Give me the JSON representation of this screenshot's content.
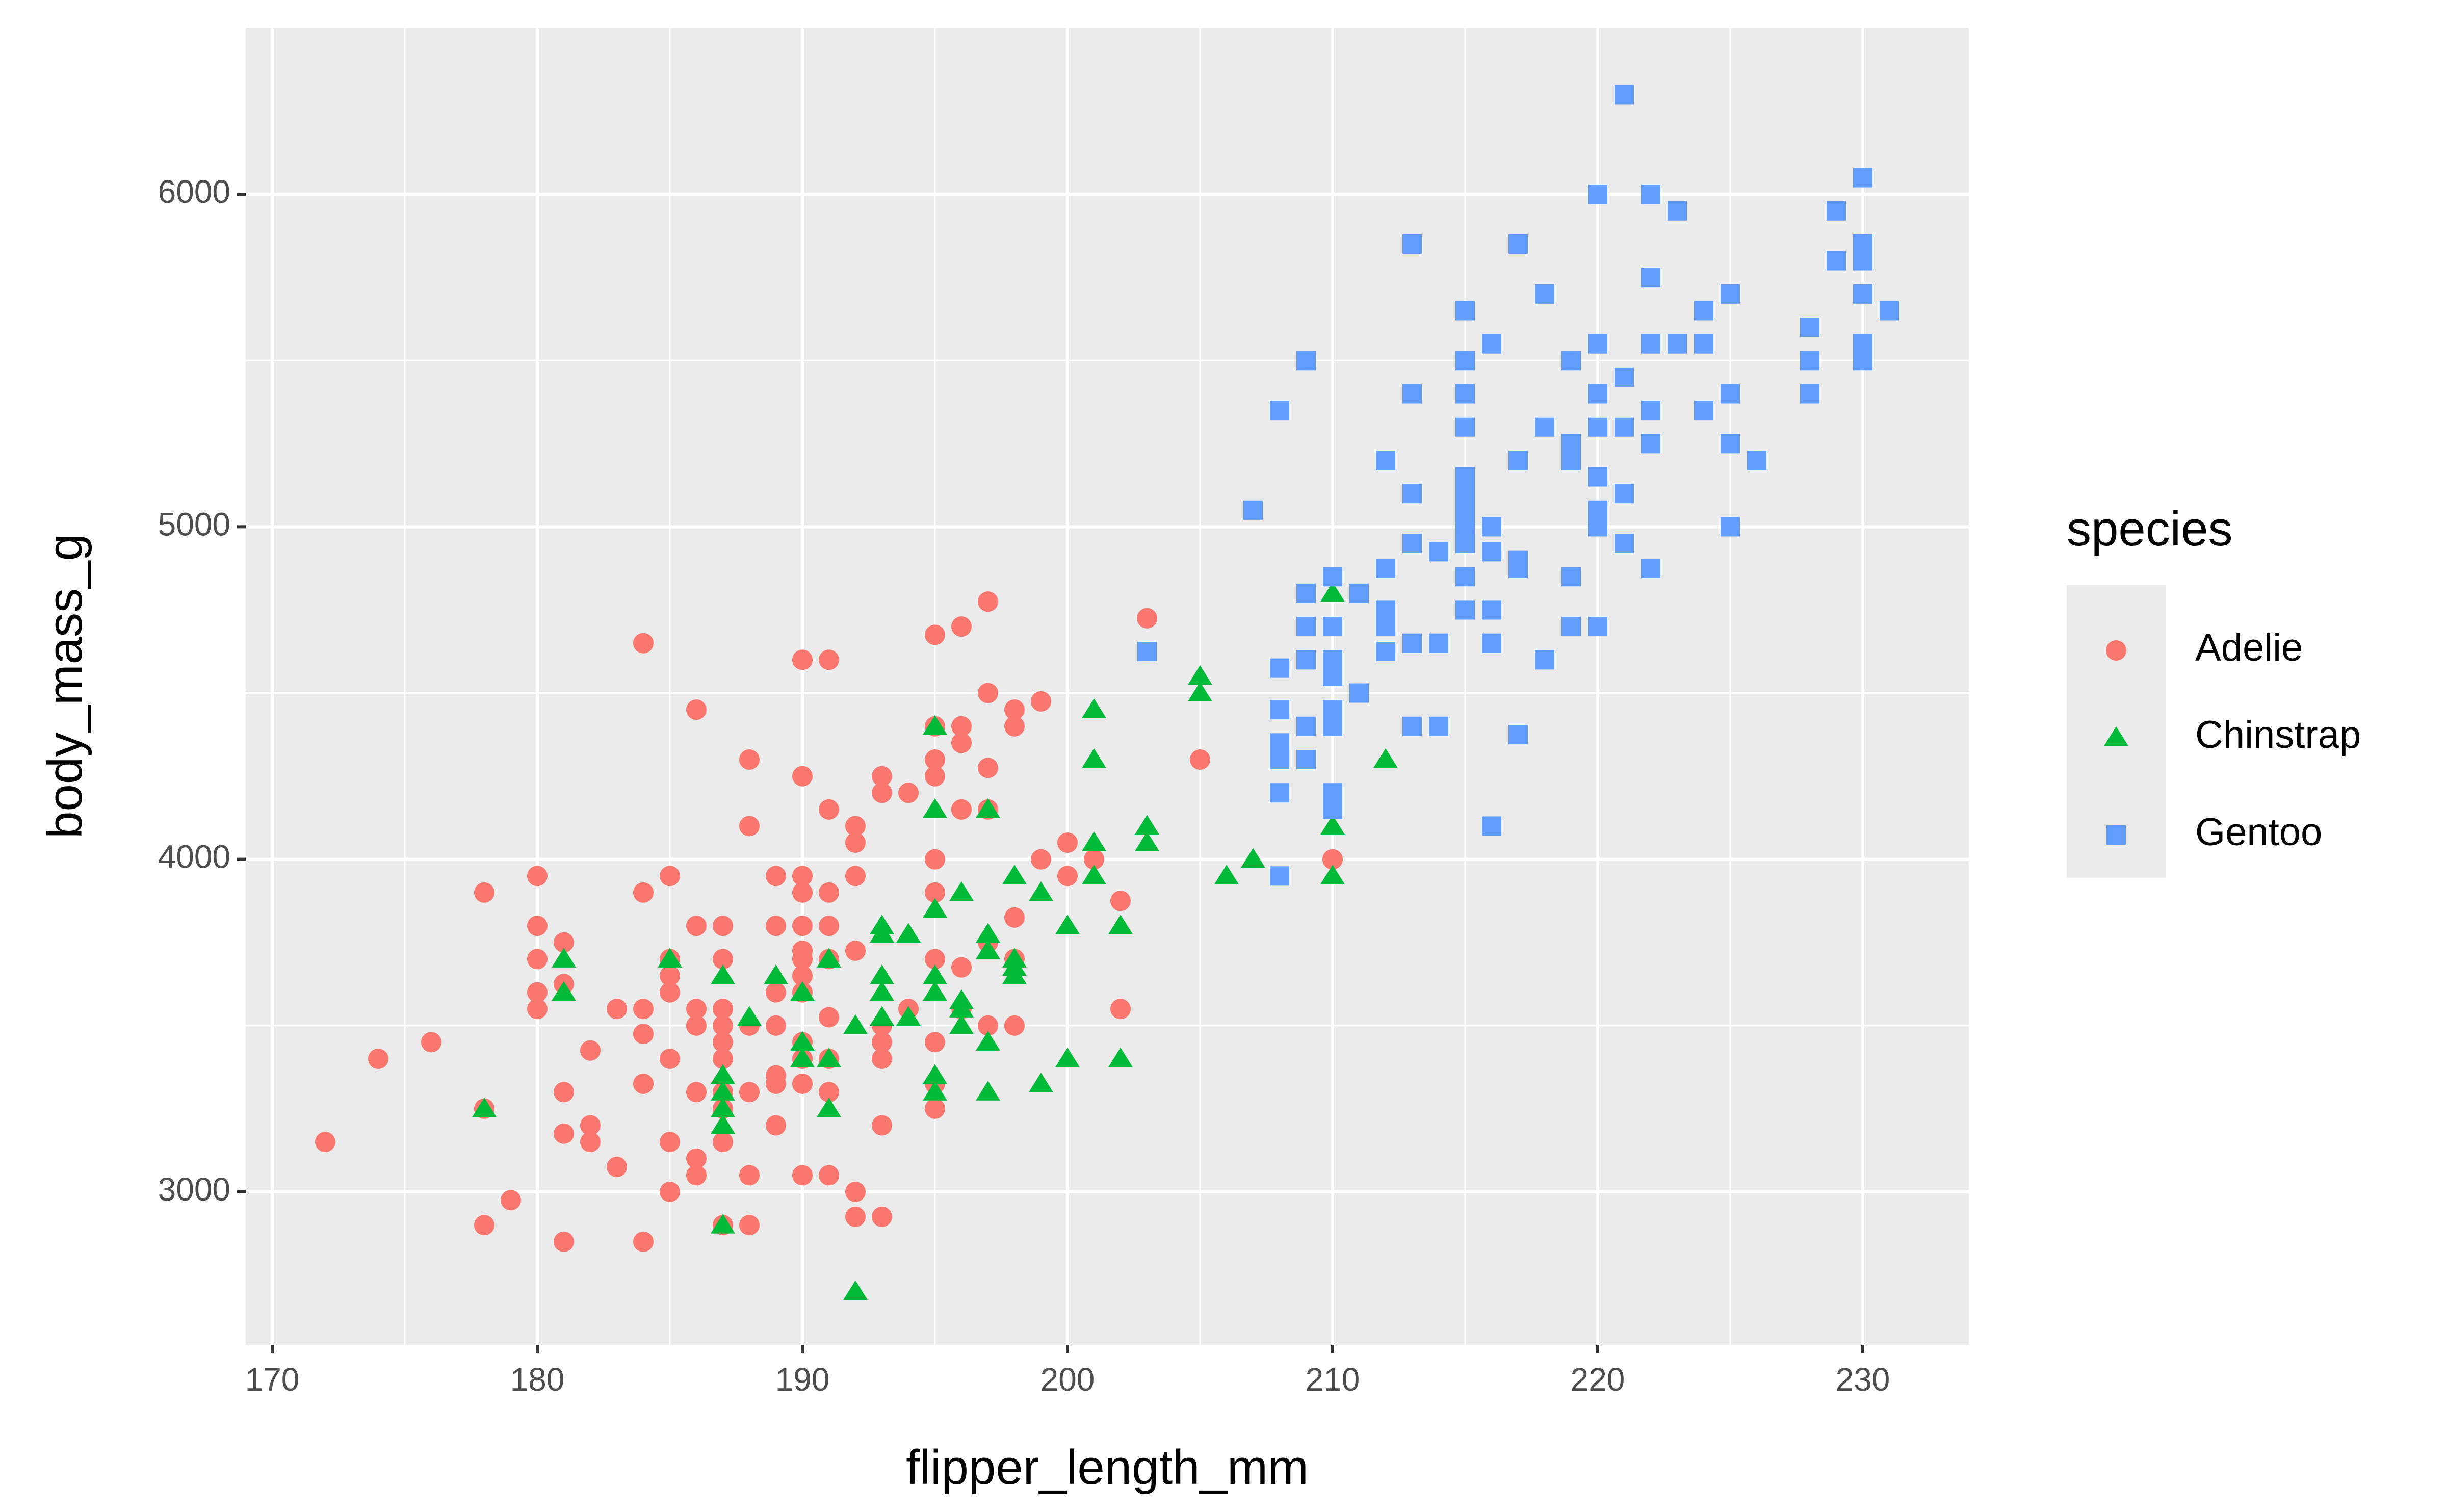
{
  "chart_data": {
    "type": "scatter",
    "title": "",
    "xlabel": "flipper_length_mm",
    "ylabel": "body_mass_g",
    "xlim": [
      169,
      234
    ],
    "ylim": [
      2540,
      6500
    ],
    "x_ticks": [
      170,
      180,
      190,
      200,
      210,
      220,
      230
    ],
    "y_ticks": [
      3000,
      4000,
      5000,
      6000
    ],
    "x_tick_labels": [
      "170",
      "180",
      "190",
      "200",
      "210",
      "220",
      "230"
    ],
    "y_tick_labels": [
      "3000",
      "4000",
      "5000",
      "6000"
    ],
    "grid": true,
    "legend": {
      "title": "species",
      "position": "right"
    },
    "series": [
      {
        "name": "Adelie",
        "color": "#F8766D",
        "shape": "circle",
        "points": [
          [
            172,
            3150
          ],
          [
            174,
            3400
          ],
          [
            176,
            3450
          ],
          [
            178,
            3900
          ],
          [
            178,
            2900
          ],
          [
            178,
            3250
          ],
          [
            179,
            2975
          ],
          [
            180,
            3950
          ],
          [
            180,
            3800
          ],
          [
            180,
            3700
          ],
          [
            180,
            3600
          ],
          [
            180,
            3550
          ],
          [
            181,
            3300
          ],
          [
            181,
            3175
          ],
          [
            181,
            2850
          ],
          [
            181,
            3750
          ],
          [
            181,
            3625
          ],
          [
            182,
            3425
          ],
          [
            182,
            3200
          ],
          [
            182,
            3150
          ],
          [
            183,
            3550
          ],
          [
            183,
            3075
          ],
          [
            184,
            4650
          ],
          [
            184,
            3900
          ],
          [
            184,
            3550
          ],
          [
            184,
            3475
          ],
          [
            184,
            3325
          ],
          [
            184,
            2850
          ],
          [
            185,
            3950
          ],
          [
            185,
            3700
          ],
          [
            185,
            3650
          ],
          [
            185,
            3600
          ],
          [
            185,
            3400
          ],
          [
            185,
            3150
          ],
          [
            185,
            3000
          ],
          [
            186,
            4450
          ],
          [
            186,
            3800
          ],
          [
            186,
            3550
          ],
          [
            186,
            3500
          ],
          [
            186,
            3300
          ],
          [
            186,
            3100
          ],
          [
            186,
            3050
          ],
          [
            187,
            3800
          ],
          [
            187,
            3700
          ],
          [
            187,
            3550
          ],
          [
            187,
            3500
          ],
          [
            187,
            3450
          ],
          [
            187,
            3400
          ],
          [
            187,
            3300
          ],
          [
            187,
            3250
          ],
          [
            187,
            3150
          ],
          [
            187,
            2900
          ],
          [
            188,
            4300
          ],
          [
            188,
            4100
          ],
          [
            188,
            3500
          ],
          [
            188,
            3300
          ],
          [
            188,
            3050
          ],
          [
            188,
            2900
          ],
          [
            189,
            3950
          ],
          [
            189,
            3800
          ],
          [
            189,
            3600
          ],
          [
            189,
            3500
          ],
          [
            189,
            3350
          ],
          [
            189,
            3325
          ],
          [
            189,
            3200
          ],
          [
            190,
            4600
          ],
          [
            190,
            4250
          ],
          [
            190,
            3950
          ],
          [
            190,
            3900
          ],
          [
            190,
            3800
          ],
          [
            190,
            3725
          ],
          [
            190,
            3700
          ],
          [
            190,
            3650
          ],
          [
            190,
            3600
          ],
          [
            190,
            3450
          ],
          [
            190,
            3400
          ],
          [
            190,
            3325
          ],
          [
            190,
            3050
          ],
          [
            191,
            4600
          ],
          [
            191,
            4150
          ],
          [
            191,
            3900
          ],
          [
            191,
            3800
          ],
          [
            191,
            3700
          ],
          [
            191,
            3525
          ],
          [
            191,
            3400
          ],
          [
            191,
            3300
          ],
          [
            191,
            3050
          ],
          [
            192,
            4100
          ],
          [
            192,
            4050
          ],
          [
            192,
            3950
          ],
          [
            192,
            3725
          ],
          [
            192,
            3000
          ],
          [
            192,
            2925
          ],
          [
            193,
            4250
          ],
          [
            193,
            4200
          ],
          [
            193,
            3500
          ],
          [
            193,
            3450
          ],
          [
            193,
            3400
          ],
          [
            193,
            3200
          ],
          [
            193,
            2925
          ],
          [
            194,
            4200
          ],
          [
            194,
            3550
          ],
          [
            195,
            4675
          ],
          [
            195,
            4400
          ],
          [
            195,
            4300
          ],
          [
            195,
            4250
          ],
          [
            195,
            4000
          ],
          [
            195,
            3900
          ],
          [
            195,
            3700
          ],
          [
            195,
            3450
          ],
          [
            195,
            3325
          ],
          [
            195,
            3250
          ],
          [
            196,
            4700
          ],
          [
            196,
            4400
          ],
          [
            196,
            4350
          ],
          [
            196,
            4150
          ],
          [
            196,
            3675
          ],
          [
            196,
            3550
          ],
          [
            197,
            4775
          ],
          [
            197,
            4500
          ],
          [
            197,
            4275
          ],
          [
            197,
            4150
          ],
          [
            197,
            3750
          ],
          [
            197,
            3500
          ],
          [
            198,
            4450
          ],
          [
            198,
            4400
          ],
          [
            198,
            3825
          ],
          [
            198,
            3700
          ],
          [
            198,
            3500
          ],
          [
            199,
            4475
          ],
          [
            199,
            4000
          ],
          [
            200,
            4050
          ],
          [
            200,
            3950
          ],
          [
            201,
            4000
          ],
          [
            202,
            3875
          ],
          [
            202,
            3550
          ],
          [
            203,
            4725
          ],
          [
            205,
            4300
          ],
          [
            210,
            4000
          ]
        ]
      },
      {
        "name": "Chinstrap",
        "color": "#00BA38",
        "shape": "triangle",
        "points": [
          [
            178,
            3250
          ],
          [
            181,
            3700
          ],
          [
            181,
            3600
          ],
          [
            185,
            3700
          ],
          [
            187,
            3650
          ],
          [
            187,
            3350
          ],
          [
            187,
            3300
          ],
          [
            187,
            3250
          ],
          [
            187,
            3200
          ],
          [
            187,
            2900
          ],
          [
            188,
            3525
          ],
          [
            189,
            3650
          ],
          [
            190,
            3600
          ],
          [
            190,
            3450
          ],
          [
            190,
            3400
          ],
          [
            191,
            3700
          ],
          [
            191,
            3400
          ],
          [
            191,
            3250
          ],
          [
            192,
            3500
          ],
          [
            192,
            2700
          ],
          [
            193,
            3800
          ],
          [
            193,
            3775
          ],
          [
            193,
            3650
          ],
          [
            193,
            3600
          ],
          [
            193,
            3525
          ],
          [
            194,
            3775
          ],
          [
            194,
            3525
          ],
          [
            195,
            4400
          ],
          [
            195,
            4150
          ],
          [
            195,
            3850
          ],
          [
            195,
            3650
          ],
          [
            195,
            3600
          ],
          [
            195,
            3350
          ],
          [
            195,
            3300
          ],
          [
            196,
            3900
          ],
          [
            196,
            3575
          ],
          [
            196,
            3550
          ],
          [
            196,
            3500
          ],
          [
            197,
            4150
          ],
          [
            197,
            3775
          ],
          [
            197,
            3725
          ],
          [
            197,
            3450
          ],
          [
            197,
            3300
          ],
          [
            198,
            3950
          ],
          [
            198,
            3700
          ],
          [
            198,
            3675
          ],
          [
            198,
            3650
          ],
          [
            199,
            3900
          ],
          [
            199,
            3325
          ],
          [
            200,
            3800
          ],
          [
            200,
            3400
          ],
          [
            201,
            4450
          ],
          [
            201,
            4300
          ],
          [
            201,
            4050
          ],
          [
            201,
            3950
          ],
          [
            202,
            3800
          ],
          [
            202,
            3400
          ],
          [
            203,
            4100
          ],
          [
            203,
            4050
          ],
          [
            205,
            4550
          ],
          [
            205,
            4500
          ],
          [
            206,
            3950
          ],
          [
            207,
            4000
          ],
          [
            210,
            4800
          ],
          [
            210,
            4100
          ],
          [
            210,
            3950
          ],
          [
            212,
            4300
          ]
        ]
      },
      {
        "name": "Gentoo",
        "color": "#619CFF",
        "shape": "square",
        "points": [
          [
            203,
            4625
          ],
          [
            207,
            5050
          ],
          [
            208,
            5350
          ],
          [
            208,
            4575
          ],
          [
            208,
            4450
          ],
          [
            208,
            4300
          ],
          [
            208,
            4350
          ],
          [
            208,
            4200
          ],
          [
            208,
            3950
          ],
          [
            209,
            5500
          ],
          [
            209,
            4800
          ],
          [
            209,
            4700
          ],
          [
            209,
            4600
          ],
          [
            209,
            4400
          ],
          [
            209,
            4300
          ],
          [
            210,
            4850
          ],
          [
            210,
            4700
          ],
          [
            210,
            4600
          ],
          [
            210,
            4550
          ],
          [
            210,
            4450
          ],
          [
            210,
            4400
          ],
          [
            210,
            4200
          ],
          [
            210,
            4150
          ],
          [
            211,
            4800
          ],
          [
            211,
            4500
          ],
          [
            212,
            5200
          ],
          [
            212,
            4875
          ],
          [
            212,
            4750
          ],
          [
            212,
            4700
          ],
          [
            212,
            4625
          ],
          [
            213,
            5850
          ],
          [
            213,
            5400
          ],
          [
            213,
            5100
          ],
          [
            213,
            4950
          ],
          [
            213,
            4650
          ],
          [
            213,
            4400
          ],
          [
            214,
            4925
          ],
          [
            214,
            4650
          ],
          [
            214,
            4400
          ],
          [
            215,
            5650
          ],
          [
            215,
            5500
          ],
          [
            215,
            5400
          ],
          [
            215,
            5300
          ],
          [
            215,
            5150
          ],
          [
            215,
            5100
          ],
          [
            215,
            5050
          ],
          [
            215,
            5000
          ],
          [
            215,
            4950
          ],
          [
            215,
            4850
          ],
          [
            215,
            4750
          ],
          [
            216,
            5550
          ],
          [
            216,
            5000
          ],
          [
            216,
            4925
          ],
          [
            216,
            4750
          ],
          [
            216,
            4650
          ],
          [
            216,
            4100
          ],
          [
            217,
            5850
          ],
          [
            217,
            5200
          ],
          [
            217,
            4900
          ],
          [
            217,
            4875
          ],
          [
            217,
            4375
          ],
          [
            218,
            5700
          ],
          [
            218,
            5300
          ],
          [
            218,
            4600
          ],
          [
            219,
            5500
          ],
          [
            219,
            5250
          ],
          [
            219,
            5200
          ],
          [
            219,
            4850
          ],
          [
            219,
            4700
          ],
          [
            220,
            6000
          ],
          [
            220,
            5550
          ],
          [
            220,
            5400
          ],
          [
            220,
            5300
          ],
          [
            220,
            5150
          ],
          [
            220,
            5050
          ],
          [
            220,
            5000
          ],
          [
            220,
            4700
          ],
          [
            221,
            6300
          ],
          [
            221,
            5450
          ],
          [
            221,
            5300
          ],
          [
            221,
            5100
          ],
          [
            221,
            4950
          ],
          [
            222,
            6000
          ],
          [
            222,
            5750
          ],
          [
            222,
            5550
          ],
          [
            222,
            5350
          ],
          [
            222,
            5250
          ],
          [
            222,
            4875
          ],
          [
            223,
            5950
          ],
          [
            223,
            5550
          ],
          [
            224,
            5650
          ],
          [
            224,
            5550
          ],
          [
            224,
            5350
          ],
          [
            225,
            5700
          ],
          [
            225,
            5400
          ],
          [
            225,
            5250
          ],
          [
            225,
            5000
          ],
          [
            226,
            5200
          ],
          [
            228,
            5600
          ],
          [
            228,
            5500
          ],
          [
            228,
            5400
          ],
          [
            229,
            5950
          ],
          [
            229,
            5800
          ],
          [
            230,
            6050
          ],
          [
            230,
            5850
          ],
          [
            230,
            5800
          ],
          [
            230,
            5700
          ],
          [
            230,
            5550
          ],
          [
            230,
            5500
          ],
          [
            231,
            5650
          ]
        ]
      }
    ]
  }
}
